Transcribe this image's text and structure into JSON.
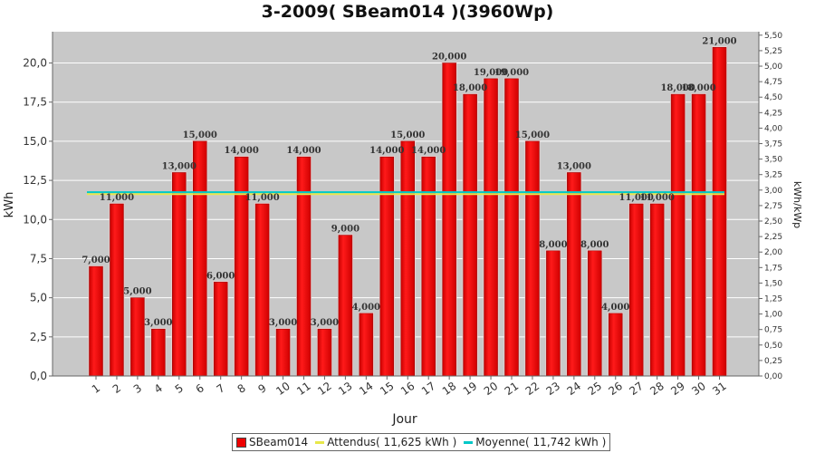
{
  "chart_data": {
    "type": "bar",
    "title": "3-2009( SBeam014 )(3960Wp)",
    "xlabel": "Jour",
    "ylabel": "kWh",
    "ylabel_right": "kWh/kWp",
    "ylim": [
      0,
      22
    ],
    "y_ticks": [
      "0,0",
      "2,5",
      "5,0",
      "7,5",
      "10,0",
      "12,5",
      "15,0",
      "17,5",
      "20,0"
    ],
    "ylim_right": [
      0,
      5.556
    ],
    "y_ticks_right": [
      "0,00",
      "0,25",
      "0,50",
      "0,75",
      "1,00",
      "1,25",
      "1,50",
      "1,75",
      "2,00",
      "2,25",
      "2,50",
      "2,75",
      "3,00",
      "3,25",
      "3,50",
      "3,75",
      "4,00",
      "4,25",
      "4,50",
      "4,75",
      "5,00",
      "5,25",
      "5,50"
    ],
    "categories": [
      "1",
      "2",
      "3",
      "4",
      "5",
      "6",
      "7",
      "8",
      "9",
      "10",
      "11",
      "12",
      "13",
      "14",
      "15",
      "16",
      "17",
      "18",
      "19",
      "20",
      "21",
      "22",
      "23",
      "24",
      "25",
      "26",
      "27",
      "28",
      "29",
      "30",
      "31"
    ],
    "series": [
      {
        "name": "SBeam014",
        "values": [
          7,
          11,
          5,
          3,
          13,
          15,
          6,
          14,
          11,
          3,
          14,
          3,
          9,
          4,
          14,
          15,
          14,
          20,
          18,
          19,
          19,
          15,
          8,
          13,
          8,
          4,
          11,
          11,
          18,
          18,
          21
        ],
        "color": "#ee0000"
      }
    ],
    "data_labels": [
      "7,000",
      "11,000",
      "5,000",
      "3,000",
      "13,000",
      "15,000",
      "6,000",
      "14,000",
      "11,000",
      "3,000",
      "14,000",
      "3,000",
      "9,000",
      "4,000",
      "14,000",
      "15,000",
      "14,000",
      "20,000",
      "18,000",
      "19,000",
      "19,000",
      "15,000",
      "8,000",
      "13,000",
      "8,000",
      "4,000",
      "11,000",
      "11,000",
      "18,000",
      "18,000",
      "21,000"
    ],
    "lines": [
      {
        "name": "Attendus( 11,625 kWh )",
        "value": 11.625,
        "color": "#e8e84a"
      },
      {
        "name": "Moyenne( 11,742 kWh )",
        "value": 11.742,
        "color": "#00c8c8"
      }
    ],
    "grid": true,
    "legend_position": "bottom"
  },
  "colors": {
    "plot_background": "#c8c8c8",
    "grid": "#ffffff"
  }
}
